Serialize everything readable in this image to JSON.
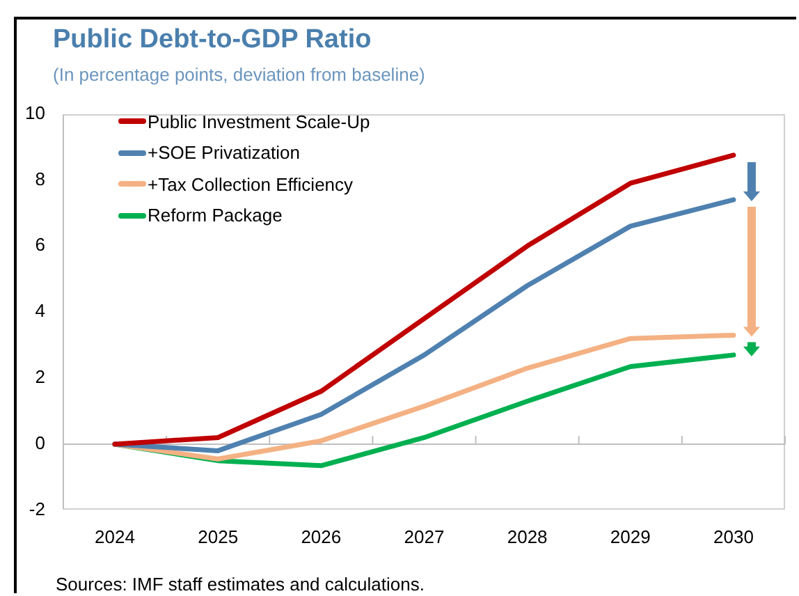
{
  "chart_data": {
    "type": "line",
    "title": "Public Debt-to-GDP Ratio",
    "subtitle": "(In percentage points, deviation from baseline)",
    "annotations": [
      "Sources: IMF staff estimates and calculations."
    ],
    "categories": [
      "2024",
      "2025",
      "2026",
      "2027",
      "2028",
      "2029",
      "2030"
    ],
    "series": [
      {
        "name": "Public Investment Scale-Up",
        "color": "#c00000",
        "values": [
          0,
          0.2,
          1.6,
          3.8,
          6.0,
          7.9,
          8.75
        ]
      },
      {
        "name": "+SOE Privatization",
        "color": "#4f81b0",
        "values": [
          0,
          -0.2,
          0.9,
          2.7,
          4.8,
          6.6,
          7.4
        ]
      },
      {
        "name": "+Tax Collection Efficiency",
        "color": "#f4b183",
        "values": [
          0,
          -0.45,
          0.1,
          1.15,
          2.3,
          3.2,
          3.3
        ]
      },
      {
        "name": "Reform Package",
        "color": "#00b050",
        "values": [
          0,
          -0.5,
          -0.65,
          0.2,
          1.3,
          2.35,
          2.7
        ]
      }
    ],
    "ref_lines": [
      {
        "axis": "y",
        "value": 0,
        "color": "#bfbfbf"
      }
    ],
    "ylim": [
      -2,
      10
    ],
    "yticks": [
      -2,
      0,
      2,
      4,
      6,
      8,
      10
    ],
    "grid": false,
    "legend": "top left",
    "marker": "none",
    "line_style": "solid"
  }
}
